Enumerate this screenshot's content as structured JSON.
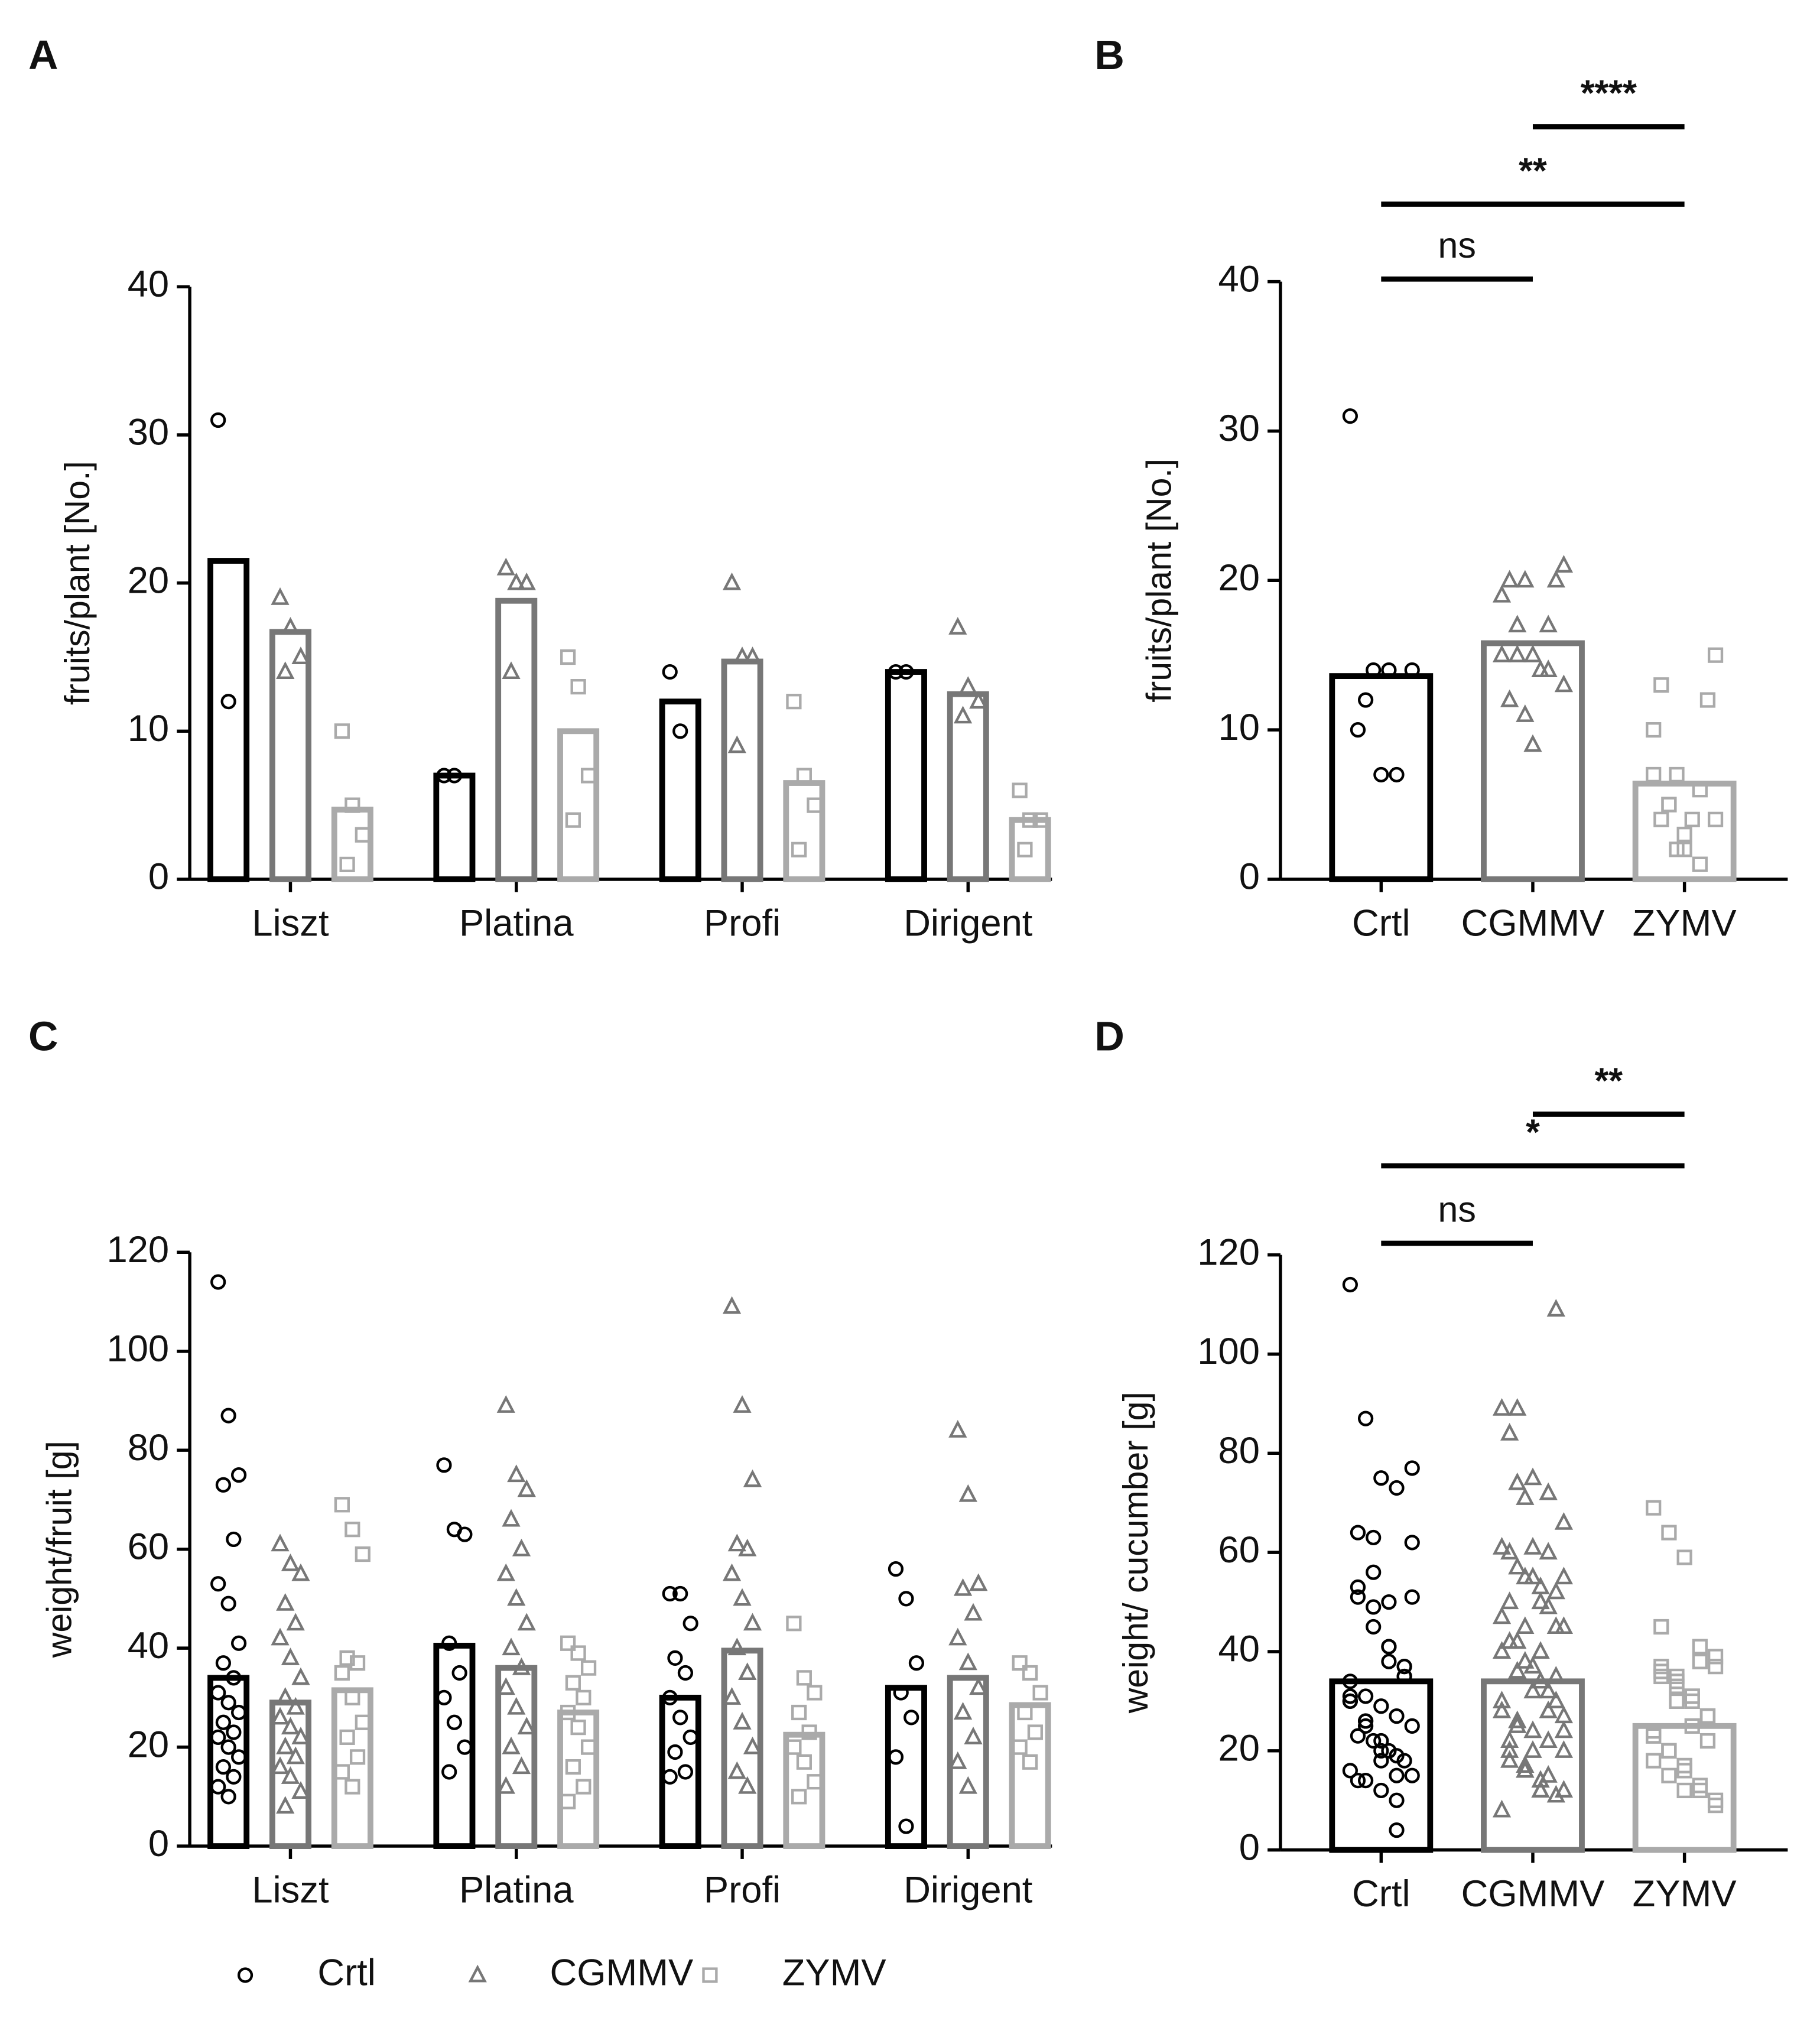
{
  "chart_data": [
    {
      "type": "grouped-bar-dot",
      "label": "A",
      "ylabel": "fruits/plant [No.]",
      "categories": [
        "Liszt",
        "Platina",
        "Profi",
        "Dirigent"
      ],
      "ylim": [
        0,
        40
      ],
      "yticks": [
        0,
        10,
        20,
        30,
        40
      ],
      "series": [
        {
          "color": "#000000",
          "values": [
            21.5,
            7,
            12,
            14
          ],
          "points": [
            [
              31,
              12
            ],
            [
              7,
              7
            ],
            [
              14,
              10
            ],
            [
              14,
              14
            ]
          ]
        },
        {
          "color": "#777777",
          "values": [
            16.7,
            18.8,
            14.7,
            12.5
          ],
          "points": [
            [
              19,
              17,
              15,
              14
            ],
            [
              21,
              20,
              20,
              14
            ],
            [
              20,
              15,
              15,
              9
            ],
            [
              17,
              13,
              12,
              11
            ]
          ]
        },
        {
          "color": "#aaaaaa",
          "values": [
            4.7,
            10,
            6.5,
            4
          ],
          "points": [
            [
              10,
              5,
              3,
              1
            ],
            [
              15,
              13,
              7,
              4
            ],
            [
              12,
              7,
              5,
              2
            ],
            [
              6,
              4,
              4,
              2
            ]
          ]
        }
      ]
    },
    {
      "type": "bar-dot",
      "label": "B",
      "ylabel": "fruits/plant [No.]",
      "categories": [
        "Crtl",
        "CGMMV",
        "ZYMV"
      ],
      "colors": [
        "#000000",
        "#777777",
        "#aaaaaa"
      ],
      "ylim": [
        0,
        40
      ],
      "yticks": [
        0,
        10,
        20,
        30,
        40
      ],
      "values": [
        13.6,
        15.8,
        6.4
      ],
      "points": [
        [
          31,
          12,
          7,
          7,
          14,
          10,
          14,
          14
        ],
        [
          19,
          17,
          15,
          14,
          21,
          20,
          20,
          14,
          20,
          15,
          15,
          9,
          17,
          13,
          12,
          11
        ],
        [
          10,
          5,
          3,
          1,
          15,
          13,
          7,
          4,
          12,
          7,
          5,
          2,
          6,
          4,
          4,
          2
        ]
      ],
      "annotations": [
        {
          "text": "ns",
          "from": 0,
          "to": 1
        },
        {
          "text": "**",
          "from": 0,
          "to": 2
        },
        {
          "text": "****",
          "from": 1,
          "to": 2
        }
      ]
    },
    {
      "type": "grouped-bar-dot",
      "label": "C",
      "ylabel": "weight/fruit [g]",
      "categories": [
        "Liszt",
        "Platina",
        "Profi",
        "Dirigent"
      ],
      "ylim": [
        0,
        120
      ],
      "yticks": [
        0,
        20,
        40,
        60,
        80,
        100,
        120
      ],
      "series": [
        {
          "name": "Crtl",
          "color": "#000000",
          "values": [
            34,
            40.5,
            30,
            32
          ],
          "points": [
            [
              114,
              87,
              75,
              73,
              62,
              53,
              49,
              41,
              37,
              34,
              31,
              29,
              27,
              25,
              23,
              22,
              20,
              18,
              16,
              14,
              12,
              10
            ],
            [
              77,
              64,
              63,
              41,
              35,
              30,
              25,
              20,
              15
            ],
            [
              51,
              51,
              45,
              38,
              35,
              30,
              26,
              22,
              19,
              15,
              14
            ],
            [
              56,
              50,
              37,
              31,
              26,
              18,
              4
            ]
          ]
        },
        {
          "name": "CGMMV",
          "color": "#777777",
          "values": [
            29,
            36,
            39.5,
            34
          ],
          "points": [
            [
              61,
              57,
              55,
              49,
              45,
              42,
              38,
              34,
              30,
              28,
              26,
              24,
              22,
              20,
              18,
              16,
              14,
              11,
              8
            ],
            [
              89,
              75,
              72,
              66,
              60,
              55,
              50,
              45,
              40,
              36,
              32,
              28,
              24,
              20,
              16,
              12
            ],
            [
              109,
              89,
              74,
              61,
              60,
              55,
              50,
              45,
              40,
              35,
              30,
              25,
              20,
              15,
              12
            ],
            [
              84,
              71,
              53,
              52,
              47,
              42,
              37,
              32,
              27,
              22,
              17,
              12
            ]
          ]
        },
        {
          "name": "ZYMV",
          "color": "#aaaaaa",
          "values": [
            31.5,
            27,
            22.5,
            28.5
          ],
          "points": [
            [
              69,
              64,
              59,
              38,
              37,
              35,
              30,
              25,
              22,
              18,
              15,
              12
            ],
            [
              41,
              39,
              36,
              33,
              30,
              27,
              24,
              20,
              16,
              12,
              9
            ],
            [
              45,
              34,
              31,
              27,
              23,
              20,
              17,
              13,
              10
            ],
            [
              37,
              35,
              31,
              27,
              23,
              20,
              17
            ]
          ]
        }
      ]
    },
    {
      "type": "bar-dot",
      "label": "D",
      "ylabel": "weight/ cucumber [g]",
      "categories": [
        "Crtl",
        "CGMMV",
        "ZYMV"
      ],
      "colors": [
        "#000000",
        "#777777",
        "#aaaaaa"
      ],
      "ylim": [
        0,
        120
      ],
      "yticks": [
        0,
        20,
        40,
        60,
        80,
        100,
        120
      ],
      "values": [
        34,
        34,
        25
      ],
      "points": [
        [
          114,
          87,
          75,
          73,
          62,
          53,
          49,
          41,
          37,
          34,
          31,
          29,
          27,
          25,
          23,
          22,
          20,
          18,
          16,
          14,
          12,
          10,
          77,
          64,
          63,
          41,
          35,
          30,
          25,
          20,
          15,
          51,
          51,
          45,
          38,
          35,
          30,
          26,
          22,
          19,
          15,
          14,
          56,
          50,
          37,
          31,
          26,
          18,
          4
        ],
        [
          61,
          57,
          55,
          49,
          45,
          42,
          38,
          34,
          30,
          28,
          26,
          24,
          22,
          20,
          18,
          16,
          14,
          11,
          8,
          89,
          75,
          72,
          66,
          60,
          55,
          50,
          45,
          40,
          36,
          32,
          28,
          24,
          20,
          16,
          12,
          109,
          89,
          74,
          61,
          60,
          55,
          50,
          45,
          40,
          35,
          30,
          25,
          20,
          15,
          12,
          84,
          71,
          53,
          52,
          47,
          42,
          37,
          32,
          27,
          22,
          17,
          12
        ],
        [
          69,
          64,
          59,
          38,
          37,
          35,
          30,
          25,
          22,
          18,
          15,
          12,
          41,
          39,
          36,
          33,
          30,
          27,
          24,
          20,
          16,
          12,
          9,
          45,
          34,
          31,
          27,
          23,
          20,
          17,
          13,
          10,
          37,
          35,
          31,
          27,
          23,
          20,
          17
        ]
      ],
      "annotations": [
        {
          "text": "ns",
          "from": 0,
          "to": 1
        },
        {
          "text": "*",
          "from": 0,
          "to": 2
        },
        {
          "text": "**",
          "from": 1,
          "to": 2
        }
      ]
    }
  ]
}
